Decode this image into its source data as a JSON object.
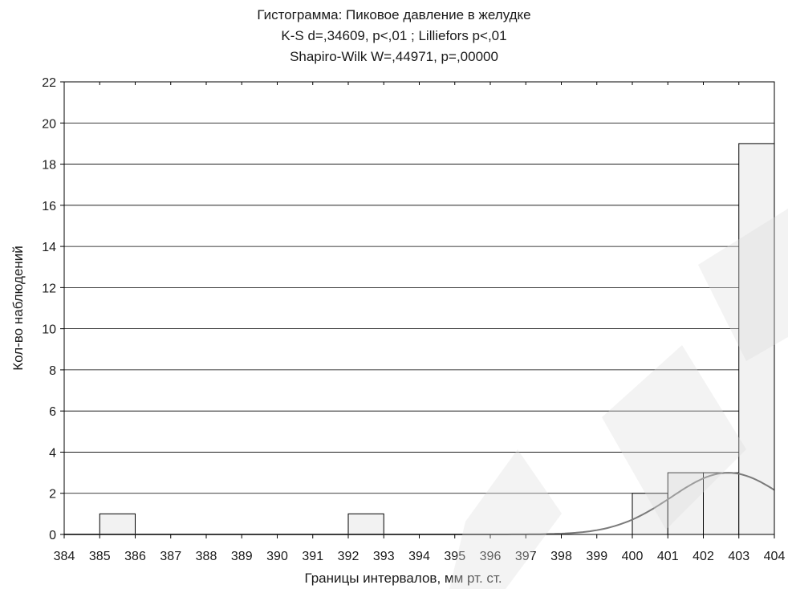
{
  "chart_data": {
    "type": "bar",
    "title_lines": [
      "Гистограмма: Пиковое давление в желудке",
      "K-S d=,34609, p<,01 ; Lilliefors p<,01",
      "Shapiro-Wilk W=,44971, p=,00000"
    ],
    "xlabel": "Границы интервалов, мм рт. ст.",
    "ylabel": "Кол-во наблюдений",
    "x_ticks": [
      "384",
      "385",
      "386",
      "387",
      "388",
      "389",
      "390",
      "391",
      "392",
      "393",
      "394",
      "395",
      "396",
      "397",
      "398",
      "399",
      "400",
      "401",
      "402",
      "403",
      "404"
    ],
    "x_range": [
      384,
      404
    ],
    "ylim": [
      0,
      22
    ],
    "y_ticks": [
      "0",
      "2",
      "4",
      "6",
      "8",
      "10",
      "12",
      "14",
      "16",
      "18",
      "20",
      "22"
    ],
    "grid": "horizontal",
    "bins": [
      {
        "from": 385,
        "to": 386,
        "count": 1
      },
      {
        "from": 392,
        "to": 393,
        "count": 1
      },
      {
        "from": 400,
        "to": 401,
        "count": 2
      },
      {
        "from": 401,
        "to": 402,
        "count": 3
      },
      {
        "from": 402,
        "to": 403,
        "count": 3
      },
      {
        "from": 403,
        "to": 404,
        "count": 19
      }
    ],
    "normal_curve": {
      "mean": 402.7,
      "sd": 1.6,
      "peak": 3.0
    },
    "colors": {
      "bar_light": "#f2f2f2",
      "bar_dark": "#5a5a5a",
      "curve": "#7a7a7a",
      "grid": "#000000"
    }
  }
}
